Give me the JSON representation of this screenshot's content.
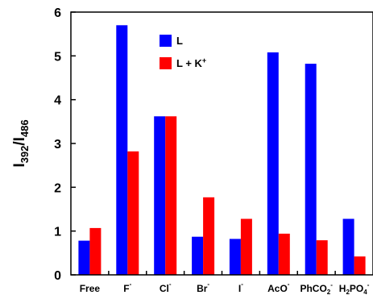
{
  "chart_data": {
    "type": "bar",
    "title": "",
    "xlabel": "",
    "ylabel": "I392/I486",
    "ylabel_parts": {
      "main1": "I",
      "sub1": "392",
      "slash": "/I",
      "sub2": "486"
    },
    "ylim": [
      0,
      6
    ],
    "yticks": [
      "0",
      "1",
      "2",
      "3",
      "4",
      "5",
      "6"
    ],
    "grid": false,
    "legend_position": "top-center",
    "categories": [
      {
        "base": "Free",
        "sub": "",
        "sup": ""
      },
      {
        "base": "F",
        "sub": "",
        "sup": "-"
      },
      {
        "base": "Cl",
        "sub": "",
        "sup": "-"
      },
      {
        "base": "Br",
        "sub": "",
        "sup": "-"
      },
      {
        "base": "I",
        "sub": "",
        "sup": "-"
      },
      {
        "base": "AcO",
        "sub": "",
        "sup": "-"
      },
      {
        "base": "PhCO",
        "sub": "2",
        "sup": "-"
      },
      {
        "base": "H",
        "sub": "2",
        "base2": "PO",
        "sub2": "4",
        "sup": "-"
      }
    ],
    "series": [
      {
        "name": "L",
        "color": "#0000ff",
        "values": [
          0.78,
          5.7,
          3.62,
          0.87,
          0.82,
          5.08,
          4.82,
          1.28
        ]
      },
      {
        "name_parts": {
          "main": "L + K",
          "sup": "+"
        },
        "name": "L + K+",
        "color": "#ff0000",
        "values": [
          1.07,
          2.82,
          3.62,
          1.77,
          1.28,
          0.94,
          0.79,
          0.42
        ]
      }
    ]
  }
}
